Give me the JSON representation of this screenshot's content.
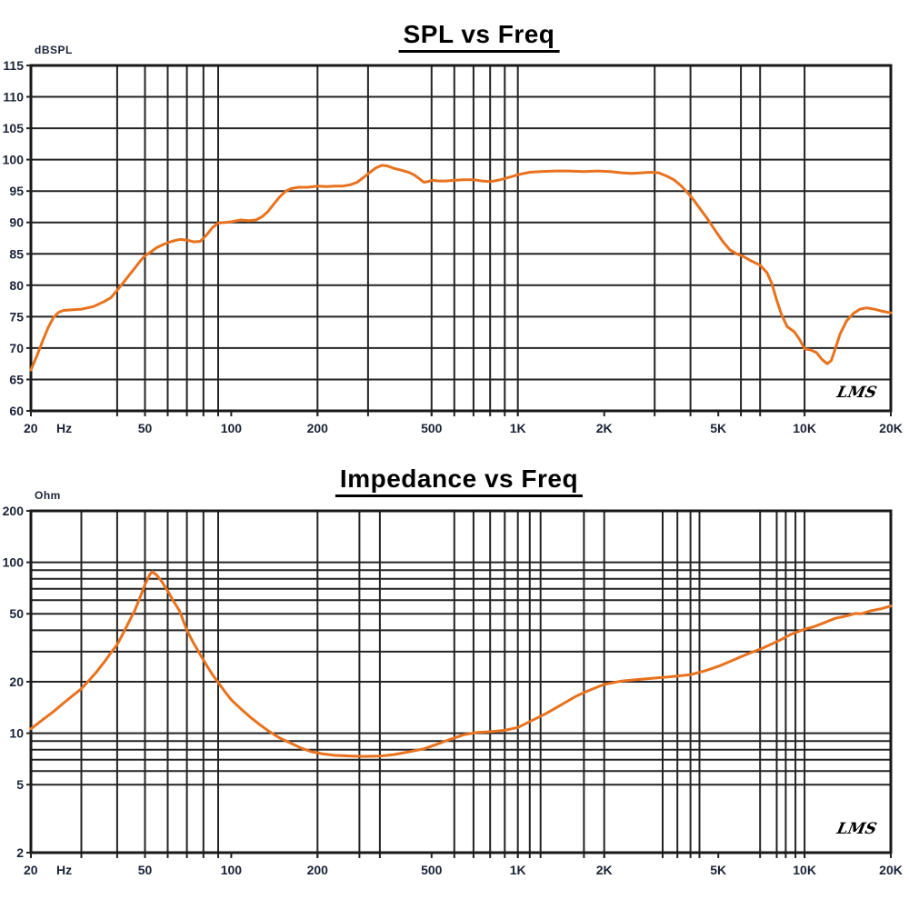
{
  "window": {
    "background": "#ffffff"
  },
  "colors": {
    "curve": "#e8721e",
    "grid": "#232323",
    "frame": "#181818",
    "tick_label": "#1b2336",
    "title": "#000000",
    "watermark": "#000000"
  },
  "chart_data": [
    {
      "type": "line",
      "title": "SPL vs Freq",
      "unit_label": "dBSPL",
      "watermark": "LMS",
      "x_scale": "log",
      "y_scale": "linear",
      "xlim": [
        20,
        20000
      ],
      "ylim": [
        60,
        115
      ],
      "x_axis_unit": "Hz",
      "grid": true,
      "legend": "none",
      "x_ticks": [
        {
          "f": 20,
          "label": "20"
        },
        {
          "f": 50,
          "label": "50"
        },
        {
          "f": 100,
          "label": "100"
        },
        {
          "f": 200,
          "label": "200"
        },
        {
          "f": 500,
          "label": "500"
        },
        {
          "f": 1000,
          "label": "1K"
        },
        {
          "f": 2000,
          "label": "2K"
        },
        {
          "f": 5000,
          "label": "5K"
        },
        {
          "f": 10000,
          "label": "10K"
        },
        {
          "f": 20000,
          "label": "20K"
        }
      ],
      "y_ticks": [
        115,
        110,
        105,
        100,
        95,
        90,
        85,
        80,
        75,
        70,
        65,
        60
      ],
      "x_gridlines": [
        40,
        50,
        60,
        70,
        80,
        90,
        200,
        300,
        500,
        600,
        700,
        800,
        900,
        1000,
        3000,
        4000,
        6000,
        7000,
        10000
      ],
      "y_gridlines": [
        115,
        110,
        105,
        100,
        95,
        90,
        85,
        80,
        75,
        70,
        65,
        60
      ],
      "series": [
        {
          "name": "SPL",
          "color": "#e8721e",
          "points": [
            [
              20,
              66.5
            ],
            [
              21,
              68.8
            ],
            [
              22,
              71.2
            ],
            [
              23,
              73.3
            ],
            [
              24,
              74.9
            ],
            [
              25,
              75.7
            ],
            [
              26,
              76.0
            ],
            [
              28,
              76.1
            ],
            [
              30,
              76.2
            ],
            [
              33,
              76.6
            ],
            [
              36,
              77.4
            ],
            [
              38,
              78.0
            ],
            [
              40,
              79.2
            ],
            [
              42,
              80.4
            ],
            [
              44,
              81.6
            ],
            [
              46,
              82.7
            ],
            [
              48,
              83.8
            ],
            [
              50,
              84.7
            ],
            [
              52,
              85.2
            ],
            [
              55,
              86.0
            ],
            [
              58,
              86.5
            ],
            [
              62,
              87.0
            ],
            [
              66,
              87.3
            ],
            [
              70,
              87.2
            ],
            [
              74,
              86.9
            ],
            [
              78,
              87.0
            ],
            [
              82,
              88.0
            ],
            [
              86,
              89.2
            ],
            [
              90,
              89.9
            ],
            [
              95,
              90.0
            ],
            [
              100,
              90.1
            ],
            [
              108,
              90.4
            ],
            [
              115,
              90.3
            ],
            [
              122,
              90.4
            ],
            [
              128,
              90.9
            ],
            [
              134,
              91.7
            ],
            [
              140,
              92.8
            ],
            [
              147,
              94.0
            ],
            [
              155,
              95.0
            ],
            [
              162,
              95.4
            ],
            [
              172,
              95.6
            ],
            [
              185,
              95.6
            ],
            [
              200,
              95.8
            ],
            [
              215,
              95.7
            ],
            [
              230,
              95.8
            ],
            [
              245,
              95.8
            ],
            [
              260,
              96.0
            ],
            [
              275,
              96.4
            ],
            [
              290,
              97.2
            ],
            [
              305,
              98.0
            ],
            [
              320,
              98.7
            ],
            [
              335,
              99.1
            ],
            [
              350,
              99.0
            ],
            [
              370,
              98.6
            ],
            [
              395,
              98.3
            ],
            [
              420,
              97.9
            ],
            [
              437,
              97.5
            ],
            [
              455,
              96.9
            ],
            [
              470,
              96.4
            ],
            [
              485,
              96.5
            ],
            [
              500,
              96.7
            ],
            [
              530,
              96.6
            ],
            [
              560,
              96.6
            ],
            [
              600,
              96.7
            ],
            [
              650,
              96.8
            ],
            [
              700,
              96.8
            ],
            [
              750,
              96.6
            ],
            [
              800,
              96.5
            ],
            [
              850,
              96.7
            ],
            [
              900,
              97.0
            ],
            [
              950,
              97.3
            ],
            [
              1000,
              97.6
            ],
            [
              1100,
              98.0
            ],
            [
              1200,
              98.1
            ],
            [
              1350,
              98.2
            ],
            [
              1500,
              98.2
            ],
            [
              1700,
              98.1
            ],
            [
              1900,
              98.2
            ],
            [
              2100,
              98.1
            ],
            [
              2300,
              97.9
            ],
            [
              2500,
              97.8
            ],
            [
              2700,
              97.9
            ],
            [
              2900,
              98.0
            ],
            [
              3100,
              97.9
            ],
            [
              3300,
              97.4
            ],
            [
              3500,
              96.8
            ],
            [
              3700,
              95.9
            ],
            [
              3900,
              94.8
            ],
            [
              4100,
              93.6
            ],
            [
              4300,
              92.3
            ],
            [
              4600,
              90.5
            ],
            [
              4900,
              88.6
            ],
            [
              5200,
              86.9
            ],
            [
              5500,
              85.6
            ],
            [
              5800,
              85.0
            ],
            [
              6100,
              84.6
            ],
            [
              6500,
              83.9
            ],
            [
              7000,
              83.2
            ],
            [
              7400,
              82.0
            ],
            [
              7700,
              80.2
            ],
            [
              8000,
              77.6
            ],
            [
              8300,
              75.4
            ],
            [
              8700,
              73.4
            ],
            [
              9200,
              72.6
            ],
            [
              9600,
              71.4
            ],
            [
              10000,
              69.9
            ],
            [
              10500,
              69.7
            ],
            [
              11000,
              69.3
            ],
            [
              11500,
              68.2
            ],
            [
              12000,
              67.5
            ],
            [
              12400,
              68.0
            ],
            [
              12800,
              69.9
            ],
            [
              13300,
              72.2
            ],
            [
              14000,
              74.3
            ],
            [
              14800,
              75.5
            ],
            [
              15600,
              76.2
            ],
            [
              16500,
              76.4
            ],
            [
              17500,
              76.2
            ],
            [
              18500,
              75.9
            ],
            [
              20000,
              75.6
            ]
          ]
        }
      ]
    },
    {
      "type": "line",
      "title": "Impedance vs Freq",
      "unit_label": "Ohm",
      "watermark": "LMS",
      "x_scale": "log",
      "y_scale": "log",
      "xlim": [
        20,
        20000
      ],
      "ylim": [
        2,
        200
      ],
      "x_axis_unit": "Hz",
      "grid": true,
      "legend": "none",
      "x_ticks": [
        {
          "f": 20,
          "label": "20"
        },
        {
          "f": 50,
          "label": "50"
        },
        {
          "f": 100,
          "label": "100"
        },
        {
          "f": 200,
          "label": "200"
        },
        {
          "f": 500,
          "label": "500"
        },
        {
          "f": 1000,
          "label": "1K"
        },
        {
          "f": 2000,
          "label": "2K"
        },
        {
          "f": 5000,
          "label": "5K"
        },
        {
          "f": 10000,
          "label": "10K"
        },
        {
          "f": 20000,
          "label": "20K"
        }
      ],
      "y_ticks": [
        200,
        100,
        50,
        20,
        10,
        5,
        2
      ],
      "x_gridlines": [
        30,
        40,
        50,
        60,
        70,
        80,
        90,
        200,
        280,
        330,
        600,
        700,
        800,
        900,
        1000,
        1100,
        1200,
        1700,
        2000,
        3200,
        3600,
        4000,
        4300,
        7000,
        8000,
        8600,
        9300,
        10000
      ],
      "y_gridlines": [
        200,
        100,
        90,
        80,
        70,
        60,
        50,
        40,
        30,
        20,
        10,
        9,
        8,
        7,
        6,
        5,
        2
      ],
      "series": [
        {
          "name": "Impedance",
          "color": "#e8721e",
          "points": [
            [
              20,
              10.6
            ],
            [
              22,
              12.0
            ],
            [
              24,
              13.4
            ],
            [
              26,
              15.0
            ],
            [
              28,
              16.6
            ],
            [
              30,
              18.2
            ],
            [
              32,
              20.5
            ],
            [
              34,
              23.0
            ],
            [
              36,
              26.0
            ],
            [
              38,
              29.5
            ],
            [
              40,
              33.0
            ],
            [
              42,
              38.5
            ],
            [
              44,
              45.0
            ],
            [
              46,
              52.0
            ],
            [
              48,
              62.0
            ],
            [
              50,
              74.0
            ],
            [
              52,
              85.0
            ],
            [
              53,
              88.0
            ],
            [
              55,
              84.0
            ],
            [
              57,
              78.0
            ],
            [
              60,
              68.0
            ],
            [
              63,
              59.0
            ],
            [
              66,
              52.0
            ],
            [
              70,
              40.0
            ],
            [
              74,
              33.5
            ],
            [
              78,
              28.8
            ],
            [
              82,
              25.0
            ],
            [
              86,
              22.0
            ],
            [
              90,
              19.8
            ],
            [
              95,
              17.5
            ],
            [
              100,
              15.7
            ],
            [
              108,
              13.9
            ],
            [
              116,
              12.5
            ],
            [
              125,
              11.3
            ],
            [
              135,
              10.3
            ],
            [
              147,
              9.4
            ],
            [
              160,
              8.8
            ],
            [
              175,
              8.2
            ],
            [
              190,
              7.8
            ],
            [
              210,
              7.55
            ],
            [
              230,
              7.42
            ],
            [
              260,
              7.35
            ],
            [
              290,
              7.32
            ],
            [
              330,
              7.35
            ],
            [
              370,
              7.5
            ],
            [
              420,
              7.8
            ],
            [
              470,
              8.1
            ],
            [
              520,
              8.6
            ],
            [
              580,
              9.2
            ],
            [
              650,
              9.8
            ],
            [
              720,
              10.1
            ],
            [
              800,
              10.2
            ],
            [
              900,
              10.4
            ],
            [
              1000,
              10.8
            ],
            [
              1100,
              11.7
            ],
            [
              1250,
              13.0
            ],
            [
              1400,
              14.5
            ],
            [
              1600,
              16.5
            ],
            [
              1800,
              18.0
            ],
            [
              2000,
              19.3
            ],
            [
              2300,
              20.2
            ],
            [
              2600,
              20.6
            ],
            [
              3000,
              21.0
            ],
            [
              3500,
              21.5
            ],
            [
              4000,
              22.0
            ],
            [
              4500,
              23.2
            ],
            [
              5000,
              24.6
            ],
            [
              5500,
              26.3
            ],
            [
              6000,
              28.0
            ],
            [
              6500,
              29.6
            ],
            [
              7000,
              31.0
            ],
            [
              7600,
              33.0
            ],
            [
              8200,
              35.0
            ],
            [
              9000,
              38.0
            ],
            [
              10000,
              40.6
            ],
            [
              10800,
              42.0
            ],
            [
              11800,
              44.5
            ],
            [
              12800,
              47.0
            ],
            [
              14000,
              48.5
            ],
            [
              15000,
              50.2
            ],
            [
              15800,
              50.0
            ],
            [
              17000,
              52.0
            ],
            [
              18500,
              53.5
            ],
            [
              20000,
              55.5
            ]
          ]
        }
      ]
    }
  ]
}
